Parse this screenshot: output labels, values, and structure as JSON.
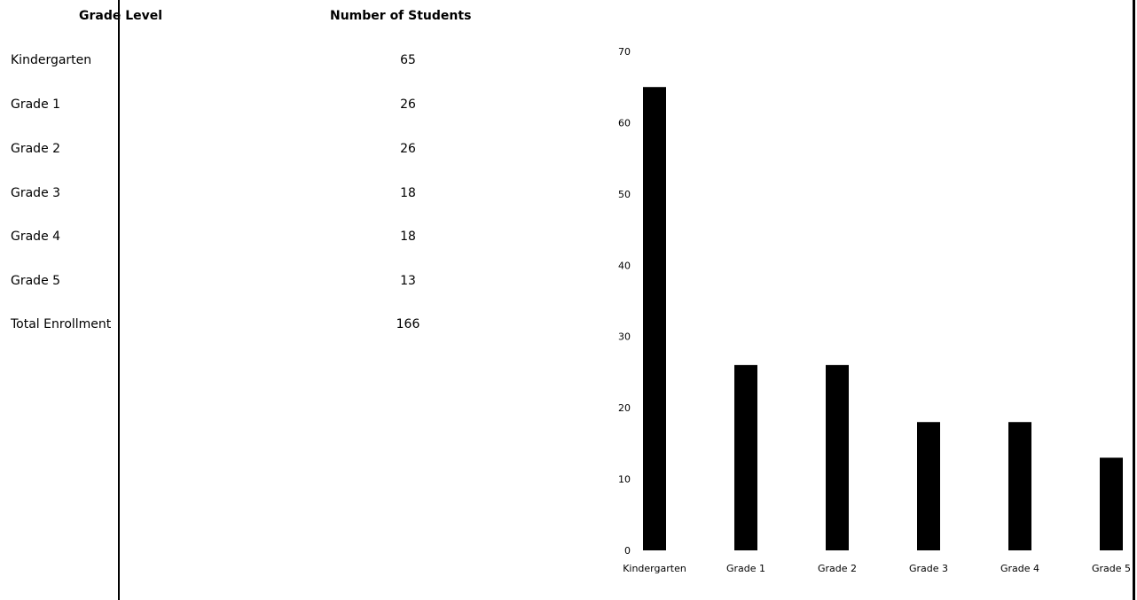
{
  "table": {
    "headers": [
      "Grade Level",
      "Number of Students"
    ],
    "rows": [
      {
        "label": "Kindergarten",
        "value": "65"
      },
      {
        "label": "Grade 1",
        "value": "26"
      },
      {
        "label": "Grade 2",
        "value": "26"
      },
      {
        "label": "Grade 3",
        "value": "18"
      },
      {
        "label": "Grade 4",
        "value": "18"
      },
      {
        "label": "Grade 5",
        "value": "13"
      },
      {
        "label": "Total Enrollment",
        "value": "166"
      }
    ]
  },
  "chart_data": {
    "type": "bar",
    "categories": [
      "Kindergarten",
      "Grade 1",
      "Grade 2",
      "Grade 3",
      "Grade 4",
      "Grade 5"
    ],
    "values": [
      65,
      26,
      26,
      18,
      18,
      13
    ],
    "title": "",
    "xlabel": "",
    "ylabel": "",
    "ylim": [
      0,
      70
    ],
    "yticks": [
      0,
      10,
      20,
      30,
      40,
      50,
      60,
      70
    ],
    "grid": false,
    "bar_color": "#000000"
  }
}
